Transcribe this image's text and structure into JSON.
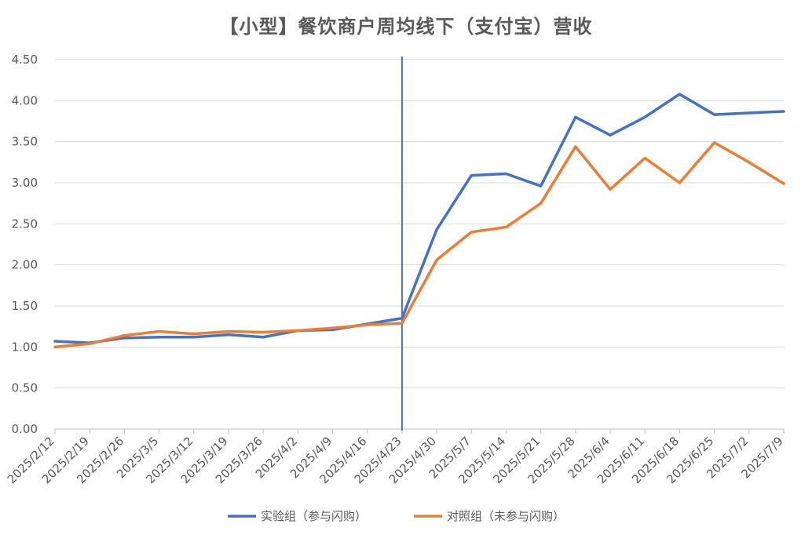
{
  "chart_data": {
    "type": "line",
    "title": "【小型】餐饮商户周均线下（支付宝）营收",
    "categories": [
      "2025/2/12",
      "2025/2/19",
      "2025/2/26",
      "2025/3/5",
      "2025/3/12",
      "2025/3/19",
      "2025/3/26",
      "2025/4/2",
      "2025/4/9",
      "2025/4/16",
      "2025/4/23",
      "2025/4/30",
      "2025/5/7",
      "2025/5/14",
      "2025/5/21",
      "2025/5/28",
      "2025/6/4",
      "2025/6/11",
      "2025/6/18",
      "2025/6/25",
      "2025/7/2",
      "2025/7/9"
    ],
    "y_ticks": [
      "0.00",
      "0.50",
      "1.00",
      "1.50",
      "2.00",
      "2.50",
      "3.00",
      "3.50",
      "4.00",
      "4.50"
    ],
    "ylim": [
      0,
      4.5
    ],
    "grid": true,
    "legend_position": "bottom",
    "reference_line_category": "2025/4/23",
    "series": [
      {
        "name": "实验组（参与闪购）",
        "color": "#4472C4",
        "values": [
          1.07,
          1.05,
          1.11,
          1.12,
          1.12,
          1.15,
          1.12,
          1.2,
          1.21,
          1.28,
          1.35,
          2.43,
          3.09,
          3.11,
          2.96,
          3.8,
          3.58,
          3.8,
          4.08,
          3.83,
          3.85,
          3.87
        ]
      },
      {
        "name": "对照组（未参与闪购）",
        "color": "#ED7D31",
        "values": [
          1.0,
          1.04,
          1.14,
          1.19,
          1.16,
          1.19,
          1.18,
          1.2,
          1.23,
          1.27,
          1.29,
          2.06,
          2.4,
          2.46,
          2.75,
          3.44,
          2.92,
          3.3,
          3.0,
          3.49,
          3.25,
          2.99
        ]
      }
    ],
    "reference_line_color": "#4472C4",
    "grid_color": "#D9D9D9",
    "axis_color": "#BFBFBF"
  }
}
